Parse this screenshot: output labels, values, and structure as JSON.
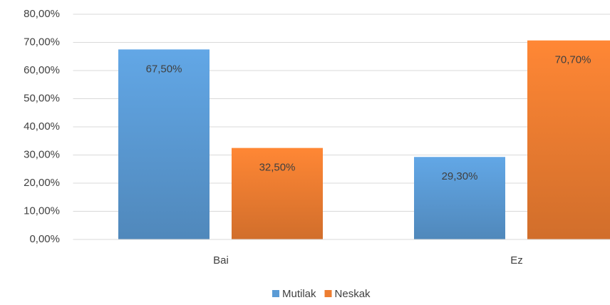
{
  "chart_data": {
    "type": "bar",
    "categories": [
      "Bai",
      "Ez"
    ],
    "series": [
      {
        "name": "Mutilak",
        "color": "#5b9bd5",
        "values": [
          67.5,
          29.3
        ],
        "value_labels": [
          "67,50%",
          "29,30%"
        ]
      },
      {
        "name": "Neskak",
        "color": "#ed7d31",
        "values": [
          32.5,
          70.7
        ],
        "value_labels": [
          "32,50%",
          "70,70%"
        ]
      }
    ],
    "ylim": [
      0,
      80
    ],
    "yticks": [
      {
        "value": 0,
        "label": "0,00%"
      },
      {
        "value": 10,
        "label": "10,00%"
      },
      {
        "value": 20,
        "label": "20,00%"
      },
      {
        "value": 30,
        "label": "30,00%"
      },
      {
        "value": 40,
        "label": "40,00%"
      },
      {
        "value": 50,
        "label": "50,00%"
      },
      {
        "value": 60,
        "label": "60,00%"
      },
      {
        "value": 70,
        "label": "70,00%"
      },
      {
        "value": 80,
        "label": "80,00%"
      }
    ],
    "grid": true,
    "legend": "bottom"
  }
}
